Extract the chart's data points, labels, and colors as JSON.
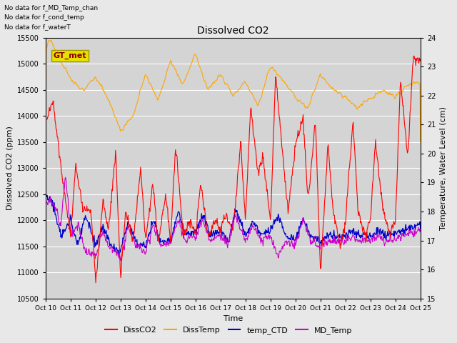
{
  "title": "Dissolved CO2",
  "xlabel": "Time",
  "ylabel_left": "Dissolved CO2 (ppm)",
  "ylabel_right": "Temperature, Water Level (cm)",
  "ylim_left": [
    10500,
    15500
  ],
  "ylim_right": [
    15.0,
    24.0
  ],
  "yticks_left": [
    10500,
    11000,
    11500,
    12000,
    12500,
    13000,
    13500,
    14000,
    14500,
    15000,
    15500
  ],
  "yticks_right": [
    15.0,
    16.0,
    17.0,
    18.0,
    19.0,
    20.0,
    21.0,
    22.0,
    23.0,
    24.0
  ],
  "xtick_labels": [
    "Oct 10",
    "Oct 11",
    "Oct 12",
    "Oct 13",
    "Oct 14",
    "Oct 15",
    "Oct 16",
    "Oct 17",
    "Oct 18",
    "Oct 19",
    "Oct 20",
    "Oct 21",
    "Oct 22",
    "Oct 23",
    "Oct 24",
    "Oct 25"
  ],
  "no_data_text": [
    "No data for f_MD_Temp_chan",
    "No data for f_cond_temp",
    "No data for f_waterT"
  ],
  "legend_label_box": "GT_met",
  "legend_entries": [
    "DissCO2",
    "DissTemp",
    "temp_CTD",
    "MD_Temp"
  ],
  "legend_colors": [
    "#ff0000",
    "#ffa500",
    "#0000cc",
    "#cc00cc"
  ],
  "line_colors": {
    "DissCO2": "#ff0000",
    "DissTemp": "#ffa500",
    "temp_CTD": "#0000cc",
    "MD_Temp": "#cc00cc"
  },
  "background_color": "#e8e8e8",
  "plot_bg_color": "#d4d4d4",
  "figsize": [
    6.4,
    4.8
  ],
  "dpi": 100
}
